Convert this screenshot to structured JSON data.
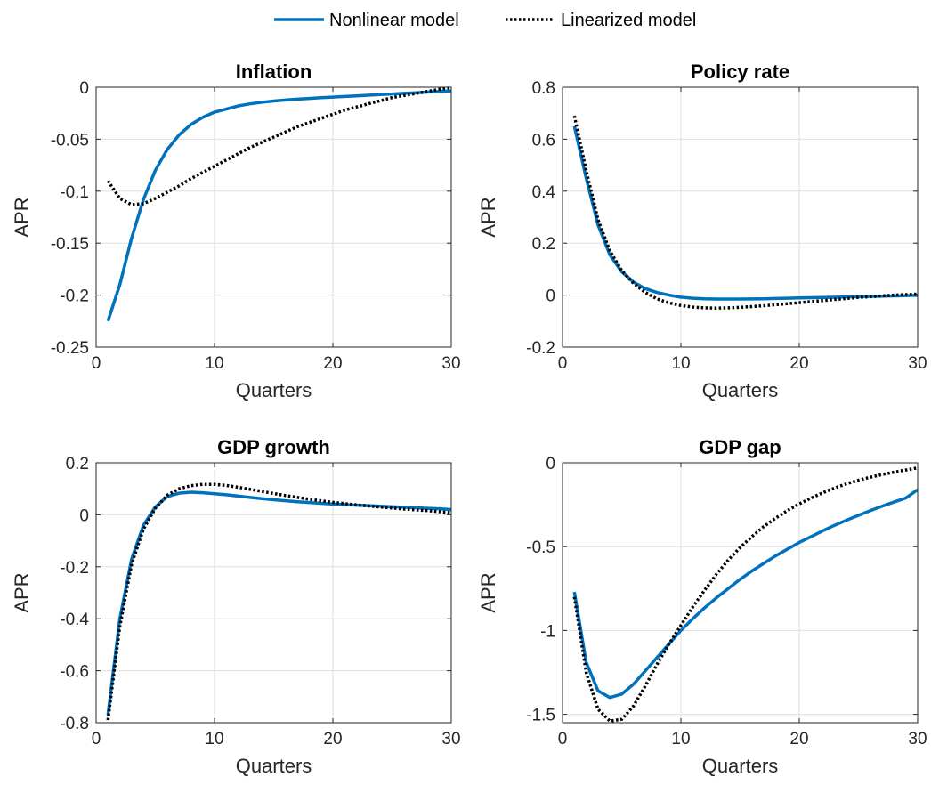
{
  "legend": {
    "entries": [
      {
        "label": "Nonlinear model",
        "color": "#0072BD",
        "style": "solid"
      },
      {
        "label": "Linearized model",
        "color": "#000000",
        "style": "dotted"
      }
    ]
  },
  "chart_data": [
    {
      "type": "line",
      "title": "Inflation",
      "xlabel": "Quarters",
      "ylabel": "APR",
      "xlim": [
        0,
        30
      ],
      "ylim": [
        -0.25,
        0
      ],
      "xticks": [
        0,
        10,
        20,
        30
      ],
      "yticks": [
        0,
        -0.05,
        -0.1,
        -0.15,
        -0.2,
        -0.25
      ],
      "xtick_labels": [
        "0",
        "10",
        "20",
        "30"
      ],
      "ytick_labels": [
        "0",
        "-0.05",
        "-0.1",
        "-0.15",
        "-0.2",
        "-0.25"
      ],
      "grid": true,
      "x": [
        1,
        2,
        3,
        4,
        5,
        6,
        7,
        8,
        9,
        10,
        11,
        12,
        13,
        14,
        15,
        16,
        17,
        18,
        19,
        20,
        21,
        22,
        23,
        24,
        25,
        26,
        27,
        28,
        29,
        30
      ],
      "series": [
        {
          "name": "Nonlinear model",
          "values": [
            -0.225,
            -0.19,
            -0.145,
            -0.108,
            -0.08,
            -0.06,
            -0.046,
            -0.036,
            -0.029,
            -0.024,
            -0.021,
            -0.018,
            -0.016,
            -0.0145,
            -0.0133,
            -0.0123,
            -0.0115,
            -0.0108,
            -0.0101,
            -0.0095,
            -0.0089,
            -0.0083,
            -0.0077,
            -0.0071,
            -0.0065,
            -0.0059,
            -0.0053,
            -0.0047,
            -0.0041,
            -0.0035
          ]
        },
        {
          "name": "Linearized model",
          "values": [
            -0.09,
            -0.107,
            -0.113,
            -0.112,
            -0.107,
            -0.101,
            -0.095,
            -0.088,
            -0.082,
            -0.076,
            -0.07,
            -0.064,
            -0.058,
            -0.053,
            -0.048,
            -0.043,
            -0.038,
            -0.034,
            -0.03,
            -0.026,
            -0.022,
            -0.019,
            -0.016,
            -0.013,
            -0.01,
            -0.008,
            -0.006,
            -0.004,
            -0.002,
            -0.0005
          ]
        }
      ]
    },
    {
      "type": "line",
      "title": "Policy rate",
      "xlabel": "Quarters",
      "ylabel": "APR",
      "xlim": [
        0,
        30
      ],
      "ylim": [
        -0.2,
        0.8
      ],
      "xticks": [
        0,
        10,
        20,
        30
      ],
      "yticks": [
        0.8,
        0.6,
        0.4,
        0.2,
        0,
        -0.2
      ],
      "xtick_labels": [
        "0",
        "10",
        "20",
        "30"
      ],
      "ytick_labels": [
        "0.8",
        "0.6",
        "0.4",
        "0.2",
        "0",
        "-0.2"
      ],
      "grid": true,
      "x": [
        1,
        2,
        3,
        4,
        5,
        6,
        7,
        8,
        9,
        10,
        11,
        12,
        13,
        14,
        15,
        16,
        17,
        18,
        19,
        20,
        21,
        22,
        23,
        24,
        25,
        26,
        27,
        28,
        29,
        30
      ],
      "series": [
        {
          "name": "Nonlinear model",
          "values": [
            0.65,
            0.45,
            0.27,
            0.155,
            0.09,
            0.05,
            0.025,
            0.01,
            0.0,
            -0.008,
            -0.012,
            -0.014,
            -0.015,
            -0.015,
            -0.015,
            -0.0145,
            -0.014,
            -0.013,
            -0.012,
            -0.011,
            -0.01,
            -0.009,
            -0.008,
            -0.007,
            -0.006,
            -0.005,
            -0.004,
            -0.003,
            -0.002,
            -0.001
          ]
        },
        {
          "name": "Linearized model",
          "values": [
            0.69,
            0.48,
            0.29,
            0.17,
            0.095,
            0.045,
            0.01,
            -0.015,
            -0.03,
            -0.04,
            -0.046,
            -0.049,
            -0.05,
            -0.049,
            -0.047,
            -0.044,
            -0.041,
            -0.037,
            -0.033,
            -0.029,
            -0.025,
            -0.021,
            -0.017,
            -0.013,
            -0.009,
            -0.006,
            -0.003,
            0.0,
            0.002,
            0.004
          ]
        }
      ]
    },
    {
      "type": "line",
      "title": "GDP growth",
      "xlabel": "Quarters",
      "ylabel": "APR",
      "xlim": [
        0,
        30
      ],
      "ylim": [
        -0.8,
        0.2
      ],
      "xticks": [
        0,
        10,
        20,
        30
      ],
      "yticks": [
        0.2,
        0,
        -0.2,
        -0.4,
        -0.6,
        -0.8
      ],
      "xtick_labels": [
        "0",
        "10",
        "20",
        "30"
      ],
      "ytick_labels": [
        "0.2",
        "0",
        "-0.2",
        "-0.4",
        "-0.6",
        "-0.8"
      ],
      "grid": true,
      "x": [
        1,
        2,
        3,
        4,
        5,
        6,
        7,
        8,
        9,
        10,
        11,
        12,
        13,
        14,
        15,
        16,
        17,
        18,
        19,
        20,
        21,
        22,
        23,
        24,
        25,
        26,
        27,
        28,
        29,
        30
      ],
      "series": [
        {
          "name": "Nonlinear model",
          "values": [
            -0.77,
            -0.4,
            -0.17,
            -0.04,
            0.03,
            0.07,
            0.083,
            0.087,
            0.085,
            0.081,
            0.077,
            0.072,
            0.067,
            0.062,
            0.058,
            0.054,
            0.05,
            0.047,
            0.044,
            0.041,
            0.039,
            0.037,
            0.035,
            0.033,
            0.031,
            0.029,
            0.027,
            0.025,
            0.023,
            0.02
          ]
        },
        {
          "name": "Linearized model",
          "values": [
            -0.79,
            -0.43,
            -0.19,
            -0.055,
            0.025,
            0.075,
            0.1,
            0.112,
            0.117,
            0.117,
            0.113,
            0.106,
            0.098,
            0.09,
            0.082,
            0.074,
            0.067,
            0.06,
            0.054,
            0.048,
            0.043,
            0.038,
            0.034,
            0.03,
            0.026,
            0.022,
            0.019,
            0.016,
            0.012,
            0.008
          ]
        }
      ]
    },
    {
      "type": "line",
      "title": "GDP gap",
      "xlabel": "Quarters",
      "ylabel": "APR",
      "xlim": [
        0,
        30
      ],
      "ylim": [
        -1.55,
        0
      ],
      "xticks": [
        0,
        10,
        20,
        30
      ],
      "yticks": [
        0,
        -0.5,
        -1,
        -1.5
      ],
      "xtick_labels": [
        "0",
        "10",
        "20",
        "30"
      ],
      "ytick_labels": [
        "0",
        "-0.5",
        "-1",
        "-1.5"
      ],
      "grid": true,
      "x": [
        1,
        2,
        3,
        4,
        5,
        6,
        7,
        8,
        9,
        10,
        11,
        12,
        13,
        14,
        15,
        16,
        17,
        18,
        19,
        20,
        21,
        22,
        23,
        24,
        25,
        26,
        27,
        28,
        29,
        30
      ],
      "series": [
        {
          "name": "Nonlinear model",
          "values": [
            -0.77,
            -1.19,
            -1.36,
            -1.4,
            -1.38,
            -1.32,
            -1.24,
            -1.16,
            -1.08,
            -1.0,
            -0.93,
            -0.865,
            -0.805,
            -0.75,
            -0.695,
            -0.645,
            -0.6,
            -0.555,
            -0.515,
            -0.475,
            -0.44,
            -0.405,
            -0.372,
            -0.342,
            -0.313,
            -0.285,
            -0.259,
            -0.234,
            -0.21,
            -0.16
          ]
        },
        {
          "name": "Linearized model",
          "values": [
            -0.8,
            -1.25,
            -1.47,
            -1.54,
            -1.53,
            -1.45,
            -1.33,
            -1.2,
            -1.08,
            -0.97,
            -0.86,
            -0.76,
            -0.665,
            -0.58,
            -0.505,
            -0.44,
            -0.38,
            -0.33,
            -0.285,
            -0.245,
            -0.21,
            -0.178,
            -0.15,
            -0.125,
            -0.104,
            -0.086,
            -0.07,
            -0.056,
            -0.043,
            -0.03
          ]
        }
      ]
    }
  ]
}
